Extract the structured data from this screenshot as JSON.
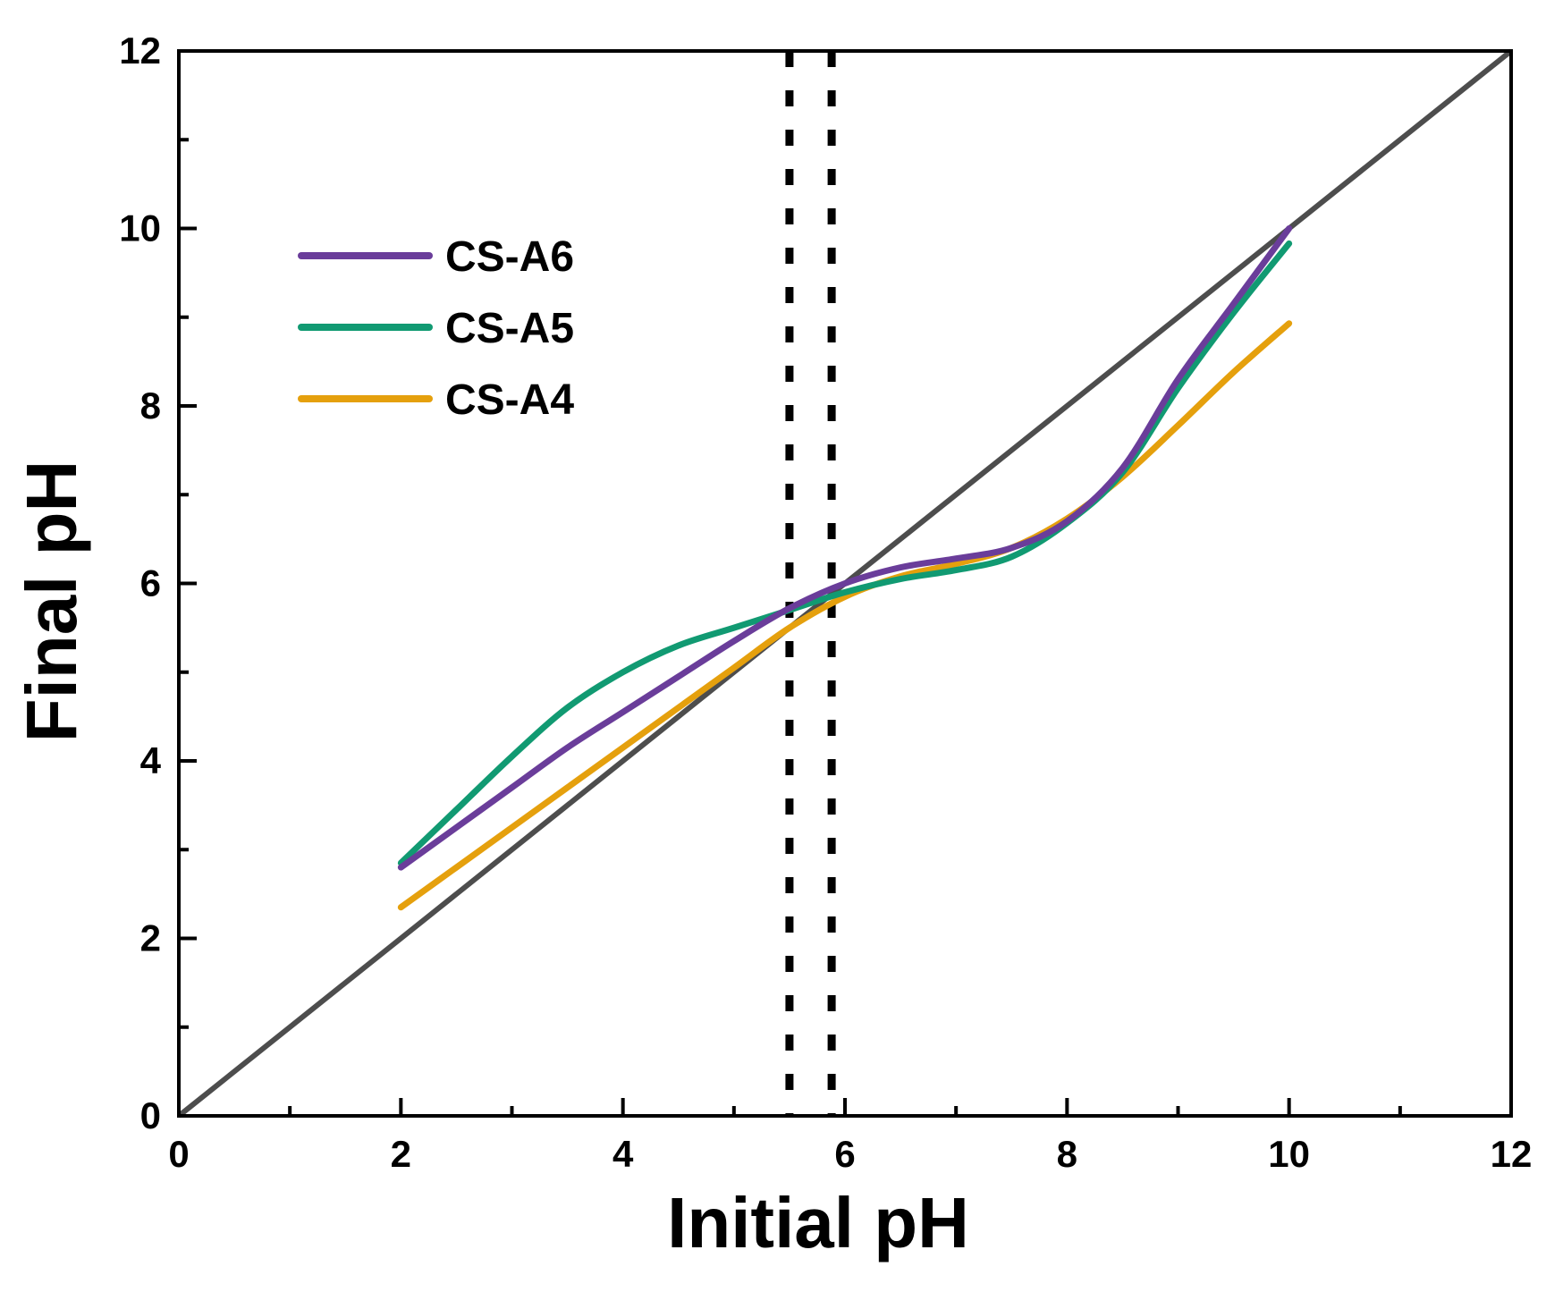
{
  "chart_data": {
    "type": "line",
    "xlabel": "Initial pH",
    "ylabel": "Final pH",
    "xlim": [
      0,
      12
    ],
    "ylim": [
      0,
      12
    ],
    "x_ticks": [
      0,
      2,
      4,
      6,
      8,
      10,
      12
    ],
    "y_ticks": [
      0,
      2,
      4,
      6,
      8,
      10,
      12
    ],
    "x_tick_labels": [
      "0",
      "2",
      "4",
      "6",
      "8",
      "10",
      "12"
    ],
    "y_tick_labels": [
      "0",
      "2",
      "4",
      "6",
      "8",
      "10",
      "12"
    ],
    "grid": false,
    "legend": "top-left",
    "reference_line": {
      "x": [
        0,
        12
      ],
      "y": [
        0,
        12
      ],
      "color": "#4d4d4d"
    },
    "vertical_markers": [
      {
        "x": 5.5,
        "style": "dotted",
        "color": "#000000"
      },
      {
        "x": 5.88,
        "style": "dotted",
        "color": "#000000"
      }
    ],
    "series": [
      {
        "name": "CS-A6",
        "color": "#6a3d9a",
        "x": [
          2,
          2.5,
          3,
          3.5,
          4,
          4.5,
          5,
          5.5,
          6,
          6.5,
          7,
          7.5,
          8,
          8.5,
          9,
          9.5,
          10
        ],
        "y": [
          2.8,
          3.25,
          3.7,
          4.15,
          4.55,
          4.95,
          5.35,
          5.72,
          6.0,
          6.18,
          6.28,
          6.4,
          6.7,
          7.3,
          8.3,
          9.15,
          10.0
        ]
      },
      {
        "name": "CS-A5",
        "color": "#119a72",
        "x": [
          2,
          2.5,
          3,
          3.5,
          4,
          4.5,
          5,
          5.5,
          6,
          6.5,
          7,
          7.5,
          8,
          8.5,
          9,
          9.5,
          10
        ],
        "y": [
          2.85,
          3.45,
          4.05,
          4.6,
          5.0,
          5.3,
          5.5,
          5.7,
          5.9,
          6.05,
          6.15,
          6.3,
          6.68,
          7.25,
          8.2,
          9.05,
          9.83
        ]
      },
      {
        "name": "CS-A4",
        "color": "#e5a00d",
        "x": [
          2,
          2.5,
          3,
          3.5,
          4,
          4.5,
          5,
          5.5,
          6,
          6.5,
          7,
          7.5,
          8,
          8.5,
          9,
          9.5,
          10
        ],
        "y": [
          2.35,
          2.8,
          3.25,
          3.7,
          4.15,
          4.6,
          5.05,
          5.5,
          5.85,
          6.08,
          6.22,
          6.4,
          6.73,
          7.2,
          7.78,
          8.38,
          8.93
        ]
      }
    ]
  }
}
